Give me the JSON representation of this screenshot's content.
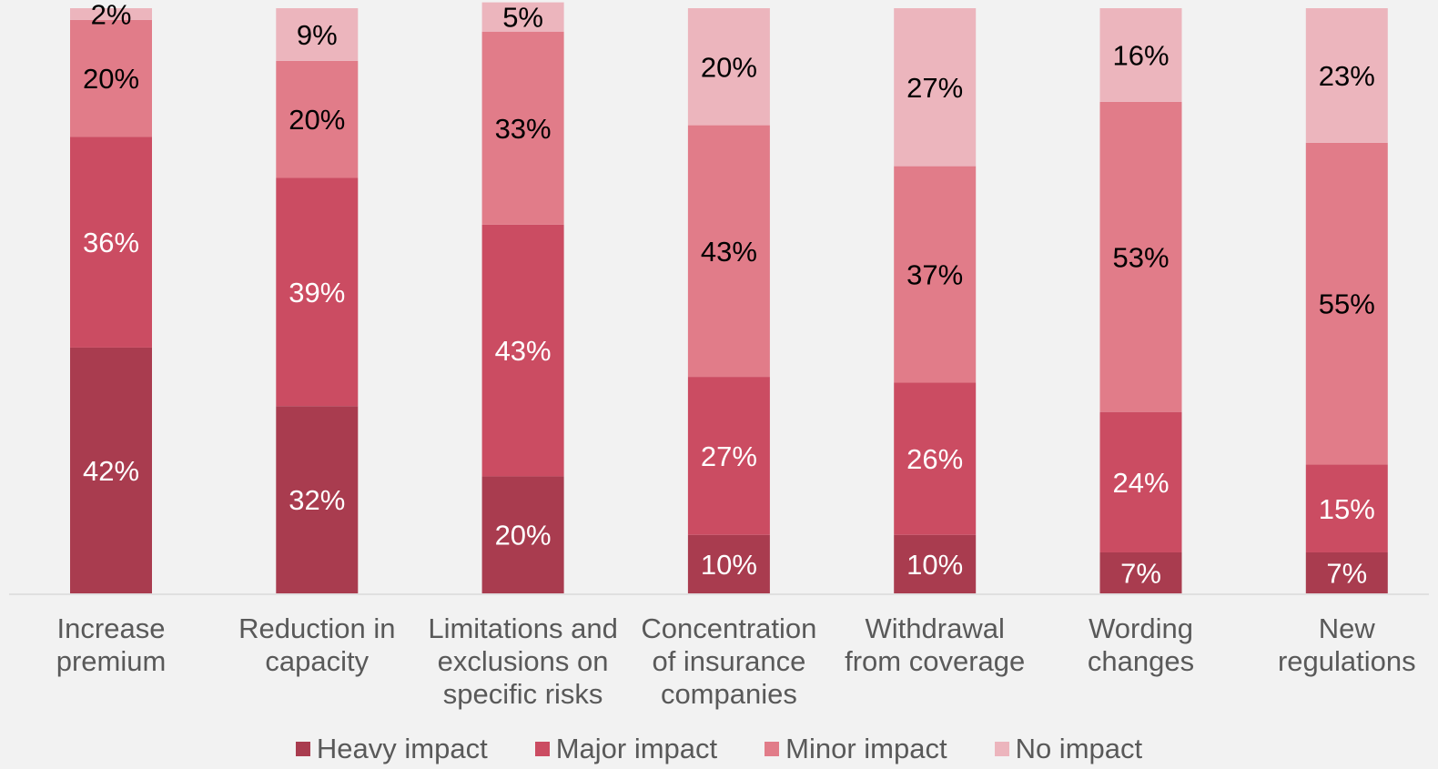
{
  "chart_data": {
    "type": "bar",
    "stacked": true,
    "percent_stacked": true,
    "categories": [
      [
        "Increase",
        "premium"
      ],
      [
        "Reduction in",
        "capacity"
      ],
      [
        "Limitations and",
        "exclusions on",
        "specific risks"
      ],
      [
        "Concentration",
        "of insurance",
        "companies"
      ],
      [
        "Withdrawal",
        "from coverage"
      ],
      [
        "Wording",
        "changes"
      ],
      [
        "New",
        "regulations"
      ]
    ],
    "series": [
      {
        "name": "Heavy impact",
        "color": "#a93c4f",
        "label_color": "#ffffff",
        "values": [
          42,
          32,
          20,
          10,
          10,
          7,
          7
        ]
      },
      {
        "name": "Major impact",
        "color": "#cb4c62",
        "label_color": "#ffffff",
        "values": [
          36,
          39,
          43,
          27,
          26,
          24,
          15
        ]
      },
      {
        "name": "Minor impact",
        "color": "#e17c89",
        "label_color": "#000000",
        "values": [
          20,
          20,
          33,
          43,
          37,
          53,
          55
        ]
      },
      {
        "name": "No impact",
        "color": "#ecb5bd",
        "label_color": "#000000",
        "values": [
          2,
          9,
          5,
          20,
          27,
          16,
          23
        ]
      }
    ],
    "value_suffix": "%",
    "ylim": [
      0,
      100
    ],
    "grid": false,
    "legend_position": "bottom"
  }
}
